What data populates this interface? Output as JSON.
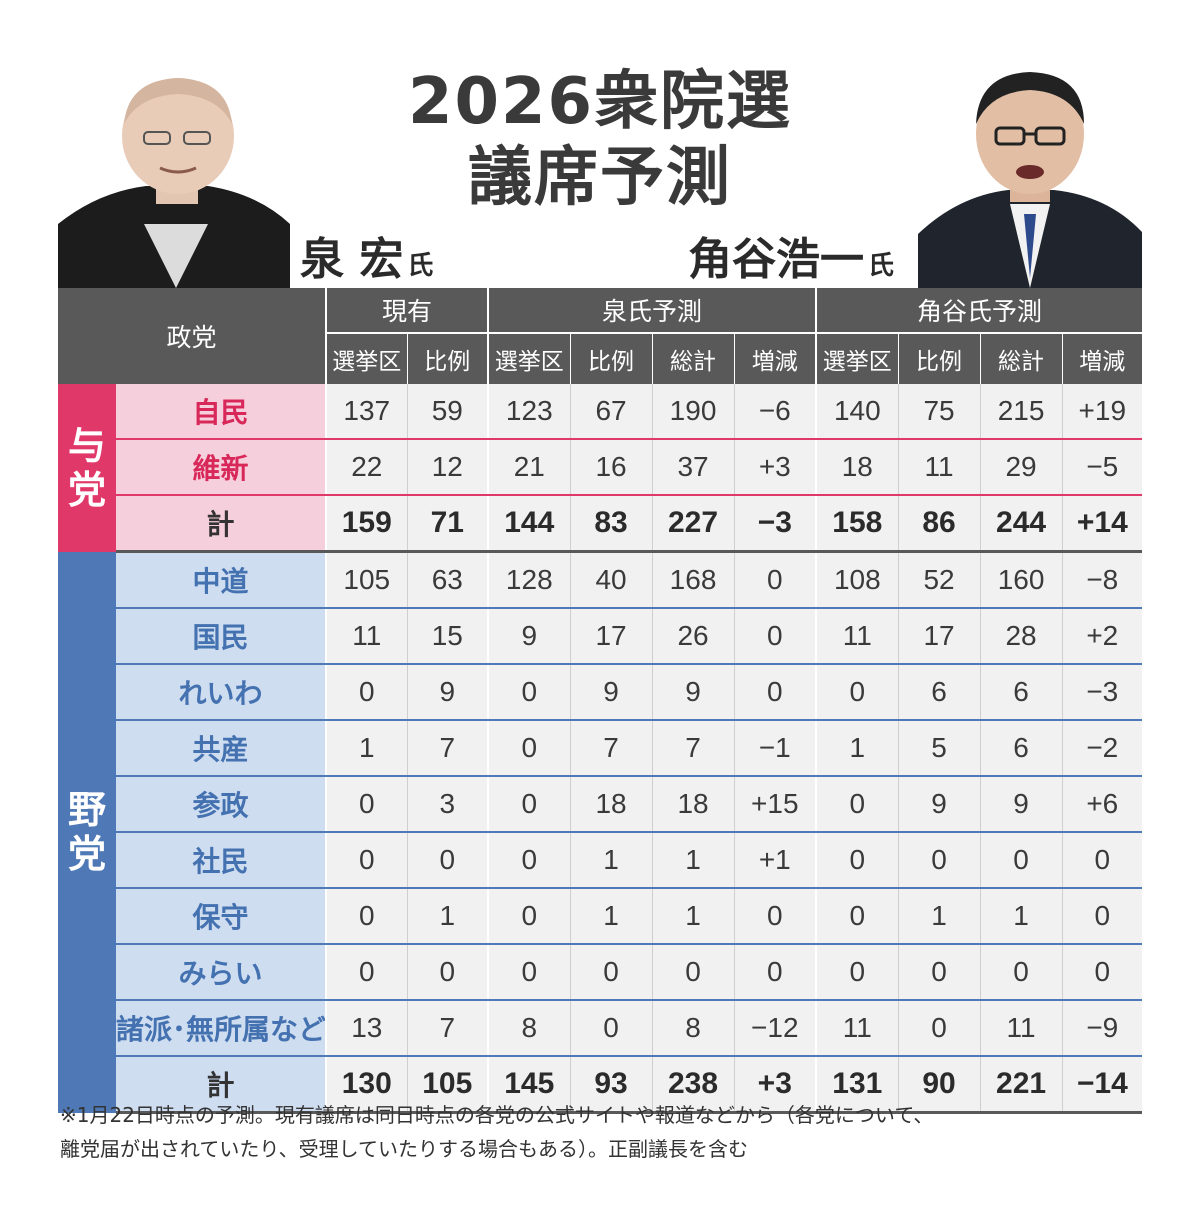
{
  "title_line1": "2026衆院選",
  "title_line2": "議席予測",
  "people": {
    "left": {
      "name": "泉 宏",
      "suffix": "氏"
    },
    "right": {
      "name": "角谷浩一",
      "suffix": "氏"
    }
  },
  "table": {
    "party_header": "政党",
    "groups": [
      "現有",
      "泉氏予測",
      "角谷氏予測"
    ],
    "current_cols": [
      "選挙区",
      "比例"
    ],
    "forecast_cols": [
      "選挙区",
      "比例",
      "総計",
      "増減"
    ],
    "ruling_label": "与党",
    "opposition_label": "野党",
    "ruling": [
      {
        "party": "自民",
        "values": [
          "137",
          "59",
          "123",
          "67",
          "190",
          "−6",
          "140",
          "75",
          "215",
          "+19"
        ]
      },
      {
        "party": "維新",
        "values": [
          "22",
          "12",
          "21",
          "16",
          "37",
          "+3",
          "18",
          "11",
          "29",
          "−5"
        ]
      },
      {
        "party": "計",
        "values": [
          "159",
          "71",
          "144",
          "83",
          "227",
          "−3",
          "158",
          "86",
          "244",
          "+14"
        ]
      }
    ],
    "opposition": [
      {
        "party": "中道",
        "values": [
          "105",
          "63",
          "128",
          "40",
          "168",
          "0",
          "108",
          "52",
          "160",
          "−8"
        ]
      },
      {
        "party": "国民",
        "values": [
          "11",
          "15",
          "9",
          "17",
          "26",
          "0",
          "11",
          "17",
          "28",
          "+2"
        ]
      },
      {
        "party": "れいわ",
        "values": [
          "0",
          "9",
          "0",
          "9",
          "9",
          "0",
          "0",
          "6",
          "6",
          "−3"
        ]
      },
      {
        "party": "共産",
        "values": [
          "1",
          "7",
          "0",
          "7",
          "7",
          "−1",
          "1",
          "5",
          "6",
          "−2"
        ]
      },
      {
        "party": "参政",
        "values": [
          "0",
          "3",
          "0",
          "18",
          "18",
          "+15",
          "0",
          "9",
          "9",
          "+6"
        ]
      },
      {
        "party": "社民",
        "values": [
          "0",
          "0",
          "0",
          "1",
          "1",
          "+1",
          "0",
          "0",
          "0",
          "0"
        ]
      },
      {
        "party": "保守",
        "values": [
          "0",
          "1",
          "0",
          "1",
          "1",
          "0",
          "0",
          "1",
          "1",
          "0"
        ]
      },
      {
        "party": "みらい",
        "values": [
          "0",
          "0",
          "0",
          "0",
          "0",
          "0",
          "0",
          "0",
          "0",
          "0"
        ]
      },
      {
        "party": "諸派･無所属など",
        "values": [
          "13",
          "7",
          "8",
          "0",
          "8",
          "−12",
          "11",
          "0",
          "11",
          "−9"
        ]
      },
      {
        "party": "計",
        "values": [
          "130",
          "105",
          "145",
          "93",
          "238",
          "+3",
          "131",
          "90",
          "221",
          "−14"
        ]
      }
    ]
  },
  "note_line1": "※1月22日時点の予測。現有議席は同日時点の各党の公式サイトや報道などから（各党について、",
  "note_line2": "離党届が出されていたり、受理していたりする場合もある）。正副議長を含む",
  "colors": {
    "ruling": "#e1386a",
    "opposition": "#4f79b6",
    "header": "#595959"
  }
}
